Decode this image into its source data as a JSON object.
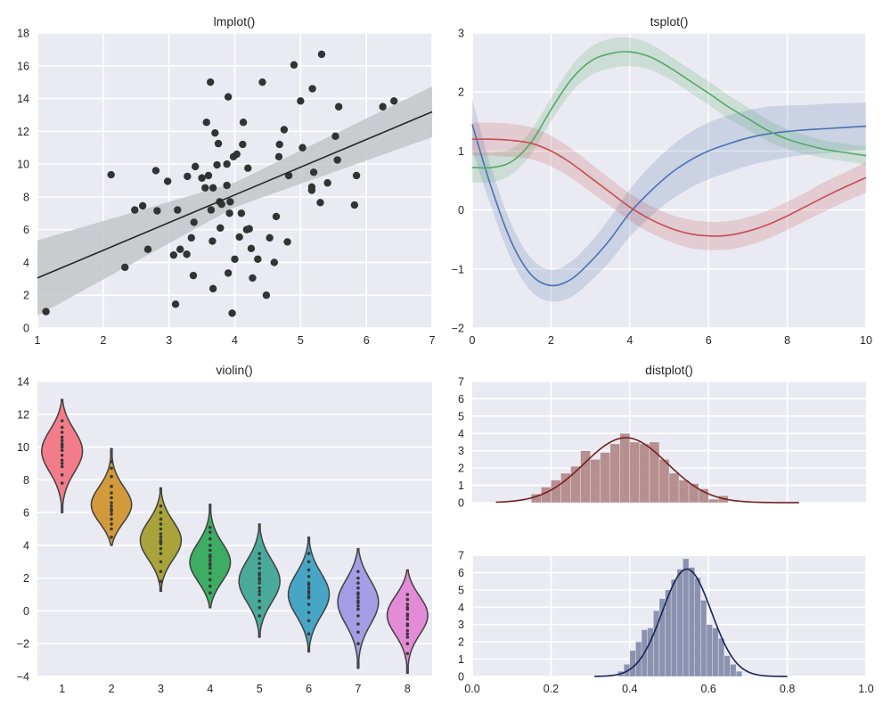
{
  "colors": {
    "panel_bg": "#eaeaf2",
    "grid": "#ffffff",
    "text": "#262626",
    "scatter": "#333333",
    "reg_line": "#262626",
    "reg_band": "#c4c5c9",
    "ts_blue": "#4c72b0",
    "ts_green": "#55a868",
    "ts_red": "#c44e52",
    "dist1": "#732121",
    "dist1_bar": "#b08585",
    "dist2": "#1a2357",
    "dist2_bar": "#8088a8",
    "violin_edge": "#404040"
  },
  "chart_data": [
    {
      "id": "lmplot",
      "type": "scatter",
      "title": "lmplot()",
      "xlim": [
        1,
        7
      ],
      "ylim": [
        0,
        18
      ],
      "xticks": [
        1,
        2,
        3,
        4,
        5,
        6,
        7
      ],
      "yticks": [
        0,
        2,
        4,
        6,
        8,
        10,
        12,
        14,
        16,
        18
      ],
      "points": [
        [
          1.13,
          1.0
        ],
        [
          2.12,
          9.35
        ],
        [
          2.33,
          3.7
        ],
        [
          2.48,
          7.2
        ],
        [
          2.6,
          7.45
        ],
        [
          2.68,
          4.8
        ],
        [
          2.8,
          9.6
        ],
        [
          2.82,
          7.15
        ],
        [
          2.98,
          8.95
        ],
        [
          3.07,
          4.45
        ],
        [
          3.1,
          1.45
        ],
        [
          3.13,
          7.2
        ],
        [
          3.17,
          4.8
        ],
        [
          3.27,
          4.5
        ],
        [
          3.28,
          9.25
        ],
        [
          3.34,
          5.5
        ],
        [
          3.37,
          3.2
        ],
        [
          3.38,
          6.45
        ],
        [
          3.4,
          9.85
        ],
        [
          3.5,
          9.15
        ],
        [
          3.55,
          8.55
        ],
        [
          3.57,
          12.55
        ],
        [
          3.6,
          9.3
        ],
        [
          3.63,
          15.0
        ],
        [
          3.64,
          7.2
        ],
        [
          3.66,
          5.3
        ],
        [
          3.67,
          8.55
        ],
        [
          3.67,
          2.4
        ],
        [
          3.7,
          11.9
        ],
        [
          3.73,
          9.95
        ],
        [
          3.75,
          11.25
        ],
        [
          3.77,
          7.7
        ],
        [
          3.78,
          6.1
        ],
        [
          3.8,
          7.55
        ],
        [
          3.88,
          10.0
        ],
        [
          3.88,
          8.7
        ],
        [
          3.9,
          14.1
        ],
        [
          3.9,
          3.35
        ],
        [
          3.92,
          7.0
        ],
        [
          3.93,
          7.7
        ],
        [
          3.96,
          0.9
        ],
        [
          3.98,
          10.45
        ],
        [
          4.0,
          4.2
        ],
        [
          4.03,
          10.6
        ],
        [
          4.07,
          5.55
        ],
        [
          4.1,
          7.0
        ],
        [
          4.12,
          11.2
        ],
        [
          4.13,
          12.55
        ],
        [
          4.18,
          6.0
        ],
        [
          4.2,
          9.75
        ],
        [
          4.22,
          6.05
        ],
        [
          4.25,
          4.85
        ],
        [
          4.27,
          3.05
        ],
        [
          4.35,
          4.2
        ],
        [
          4.42,
          15.0
        ],
        [
          4.48,
          2.0
        ],
        [
          4.53,
          5.5
        ],
        [
          4.6,
          4.0
        ],
        [
          4.63,
          6.8
        ],
        [
          4.67,
          10.45
        ],
        [
          4.68,
          11.2
        ],
        [
          4.75,
          12.1
        ],
        [
          4.8,
          5.25
        ],
        [
          4.82,
          9.3
        ],
        [
          4.9,
          16.05
        ],
        [
          5.0,
          13.85
        ],
        [
          5.03,
          11.0
        ],
        [
          5.17,
          8.6
        ],
        [
          5.17,
          8.4
        ],
        [
          5.18,
          14.6
        ],
        [
          5.2,
          9.5
        ],
        [
          5.3,
          7.65
        ],
        [
          5.32,
          16.7
        ],
        [
          5.41,
          8.85
        ],
        [
          5.53,
          11.7
        ],
        [
          5.56,
          10.25
        ],
        [
          5.58,
          13.5
        ],
        [
          5.82,
          7.5
        ],
        [
          5.85,
          9.3
        ],
        [
          6.25,
          13.5
        ],
        [
          6.42,
          13.85
        ]
      ],
      "regression": {
        "intercept": 1.36,
        "slope": 1.69,
        "band_halfwidth": [
          [
            1,
            2.3
          ],
          [
            4,
            0.75
          ],
          [
            7,
            1.55
          ]
        ]
      }
    },
    {
      "id": "tsplot",
      "type": "line",
      "title": "tsplot()",
      "xlim": [
        0,
        10
      ],
      "ylim": [
        -2,
        3
      ],
      "xticks": [
        0,
        2,
        4,
        6,
        8,
        10
      ],
      "yticks": [
        -2,
        -1,
        0,
        1,
        2,
        3
      ],
      "series": [
        {
          "name": "blue",
          "color_key": "ts_blue",
          "x": [
            0,
            0.5,
            1,
            1.5,
            2,
            2.5,
            3,
            3.5,
            4,
            4.5,
            5,
            5.5,
            6,
            6.5,
            7,
            7.5,
            8,
            8.5,
            9,
            9.5,
            10
          ],
          "y": [
            1.45,
            0.35,
            -0.55,
            -1.1,
            -1.28,
            -1.18,
            -0.88,
            -0.5,
            -0.05,
            0.3,
            0.6,
            0.83,
            1.0,
            1.12,
            1.22,
            1.29,
            1.33,
            1.36,
            1.38,
            1.4,
            1.42
          ],
          "err": [
            0.42,
            0.33,
            0.3,
            0.28,
            0.27,
            0.3,
            0.33,
            0.37,
            0.4,
            0.43,
            0.45,
            0.47,
            0.48,
            0.48,
            0.47,
            0.46,
            0.44,
            0.42,
            0.42,
            0.41,
            0.4
          ]
        },
        {
          "name": "green",
          "color_key": "ts_green",
          "x": [
            0,
            0.5,
            1,
            1.5,
            2,
            2.5,
            3,
            3.5,
            4,
            4.5,
            5,
            5.5,
            6,
            6.5,
            7,
            7.5,
            8,
            8.5,
            9,
            9.5,
            10
          ],
          "y": [
            0.72,
            0.72,
            0.82,
            1.15,
            1.7,
            2.2,
            2.52,
            2.65,
            2.68,
            2.6,
            2.42,
            2.2,
            1.98,
            1.75,
            1.55,
            1.35,
            1.2,
            1.1,
            1.02,
            0.97,
            0.92
          ],
          "err": [
            0.25,
            0.25,
            0.22,
            0.2,
            0.2,
            0.22,
            0.24,
            0.25,
            0.24,
            0.22,
            0.2,
            0.2,
            0.2,
            0.2,
            0.19,
            0.18,
            0.17,
            0.16,
            0.15,
            0.15,
            0.15
          ]
        },
        {
          "name": "red",
          "color_key": "ts_red",
          "x": [
            0,
            0.5,
            1,
            1.5,
            2,
            2.5,
            3,
            3.5,
            4,
            4.5,
            5,
            5.5,
            6,
            6.5,
            7,
            7.5,
            8,
            8.5,
            9,
            9.5,
            10
          ],
          "y": [
            1.2,
            1.2,
            1.18,
            1.13,
            1.0,
            0.8,
            0.55,
            0.3,
            0.05,
            -0.15,
            -0.3,
            -0.4,
            -0.44,
            -0.43,
            -0.36,
            -0.25,
            -0.1,
            0.07,
            0.24,
            0.4,
            0.55
          ],
          "err": [
            0.28,
            0.28,
            0.28,
            0.27,
            0.26,
            0.25,
            0.24,
            0.23,
            0.23,
            0.23,
            0.23,
            0.24,
            0.24,
            0.24,
            0.24,
            0.24,
            0.24,
            0.24,
            0.25,
            0.25,
            0.26
          ]
        }
      ]
    },
    {
      "id": "violin",
      "type": "violin",
      "title": "violin()",
      "xlim": [
        0.5,
        8.5
      ],
      "ylim": [
        -4,
        14
      ],
      "xticks": [
        1,
        2,
        3,
        4,
        5,
        6,
        7,
        8
      ],
      "yticks": [
        -4,
        -2,
        0,
        2,
        4,
        6,
        8,
        10,
        12,
        14
      ],
      "groups": [
        {
          "label": "1",
          "color": "#f37c8a",
          "center": 9.8,
          "low": 6.0,
          "high": 12.9,
          "points": [
            7.8,
            8.3,
            8.8,
            9.2,
            9.5,
            9.8,
            10.0,
            10.2,
            10.4,
            10.6,
            10.9,
            11.2,
            11.6,
            9.0,
            10.1
          ]
        },
        {
          "label": "2",
          "color": "#d39a3b",
          "center": 6.4,
          "low": 4.0,
          "high": 9.9,
          "points": [
            4.5,
            5.0,
            5.3,
            5.6,
            5.9,
            6.1,
            6.4,
            6.6,
            6.9,
            7.2,
            7.6,
            8.2,
            8.7,
            9.1,
            6.2
          ]
        },
        {
          "label": "3",
          "color": "#a9a33a",
          "center": 4.3,
          "low": 1.2,
          "high": 7.5,
          "points": [
            1.8,
            2.4,
            3.0,
            3.5,
            3.8,
            4.1,
            4.3,
            4.5,
            4.7,
            5.0,
            5.3,
            5.6,
            6.0,
            6.4,
            4.2
          ]
        },
        {
          "label": "4",
          "color": "#3cad63",
          "center": 2.9,
          "low": 0.2,
          "high": 6.5,
          "points": [
            1.1,
            1.5,
            1.9,
            2.3,
            2.6,
            2.9,
            3.1,
            3.4,
            3.7,
            4.0,
            4.4,
            4.8,
            5.1,
            2.8,
            3.3
          ]
        },
        {
          "label": "5",
          "color": "#4aaa99",
          "center": 1.8,
          "low": -1.6,
          "high": 5.3,
          "points": [
            -0.3,
            0.2,
            0.6,
            1.0,
            1.4,
            1.7,
            2.0,
            2.3,
            2.6,
            2.9,
            3.2,
            3.5,
            1.9,
            1.2,
            2.2
          ]
        },
        {
          "label": "6",
          "color": "#47a6c6",
          "center": 1.0,
          "low": -2.5,
          "high": 4.5,
          "points": [
            -1.4,
            -0.6,
            -0.1,
            0.4,
            0.8,
            1.1,
            1.4,
            1.7,
            2.1,
            2.5,
            3.0,
            3.5,
            0.9,
            1.2,
            1.6
          ]
        },
        {
          "label": "7",
          "color": "#a59de5",
          "center": 0.6,
          "low": -3.5,
          "high": 3.8,
          "points": [
            -2.0,
            -1.3,
            -0.8,
            -0.3,
            0.1,
            0.5,
            0.8,
            1.1,
            1.4,
            1.7,
            2.0,
            2.4,
            0.6,
            0.3,
            1.0
          ]
        },
        {
          "label": "8",
          "color": "#e38bd6",
          "center": -0.2,
          "low": -3.8,
          "high": 2.5,
          "points": [
            -2.6,
            -2.0,
            -1.6,
            -1.2,
            -0.8,
            -0.5,
            -0.2,
            0.1,
            0.4,
            0.7,
            1.0,
            -0.3,
            -0.9,
            0.2,
            -1.4
          ]
        }
      ]
    },
    {
      "id": "distplot_top",
      "type": "histogram",
      "title": "distplot()",
      "xlim": [
        0,
        1
      ],
      "ylim": [
        0,
        7
      ],
      "yticks": [
        0,
        1,
        2,
        3,
        4,
        5,
        6,
        7
      ],
      "bins": [
        [
          0.15,
          0.5
        ],
        [
          0.175,
          0.9
        ],
        [
          0.2,
          1.3
        ],
        [
          0.225,
          1.7
        ],
        [
          0.25,
          2.1
        ],
        [
          0.275,
          3.0
        ],
        [
          0.3,
          2.5
        ],
        [
          0.325,
          2.9
        ],
        [
          0.35,
          3.4
        ],
        [
          0.375,
          4.0
        ],
        [
          0.4,
          3.5
        ],
        [
          0.425,
          3.4
        ],
        [
          0.45,
          3.5
        ],
        [
          0.475,
          2.5
        ],
        [
          0.5,
          1.7
        ],
        [
          0.525,
          1.3
        ],
        [
          0.55,
          1.1
        ],
        [
          0.575,
          0.8
        ],
        [
          0.6,
          0.2
        ],
        [
          0.625,
          0.4
        ]
      ],
      "bin_width": 0.025,
      "kde": {
        "mean": 0.39,
        "sd": 0.105,
        "peak": 3.75,
        "range": [
          0.06,
          0.83
        ]
      }
    },
    {
      "id": "distplot_bottom",
      "type": "histogram",
      "title": "",
      "xlim": [
        0,
        1
      ],
      "ylim": [
        0,
        7
      ],
      "xticks": [
        0.0,
        0.2,
        0.4,
        0.6,
        0.8,
        1.0
      ],
      "xtick_labels": [
        "0.0",
        "0.2",
        "0.4",
        "0.6",
        "0.8",
        "1.0"
      ],
      "yticks": [
        0,
        1,
        2,
        3,
        4,
        5,
        6,
        7
      ],
      "bins": [
        [
          0.37,
          0.3
        ],
        [
          0.385,
          0.7
        ],
        [
          0.4,
          1.5
        ],
        [
          0.415,
          2.0
        ],
        [
          0.43,
          2.7
        ],
        [
          0.445,
          2.8
        ],
        [
          0.46,
          3.8
        ],
        [
          0.475,
          4.5
        ],
        [
          0.49,
          5.0
        ],
        [
          0.505,
          5.6
        ],
        [
          0.52,
          6.2
        ],
        [
          0.535,
          6.8
        ],
        [
          0.55,
          6.3
        ],
        [
          0.565,
          5.7
        ],
        [
          0.58,
          4.4
        ],
        [
          0.595,
          3.0
        ],
        [
          0.61,
          2.8
        ],
        [
          0.625,
          2.2
        ],
        [
          0.64,
          1.2
        ],
        [
          0.655,
          0.7
        ],
        [
          0.67,
          0.3
        ]
      ],
      "bin_width": 0.015,
      "kde": {
        "mean": 0.545,
        "sd": 0.062,
        "peak": 6.2,
        "range": [
          0.31,
          0.8
        ]
      }
    }
  ]
}
